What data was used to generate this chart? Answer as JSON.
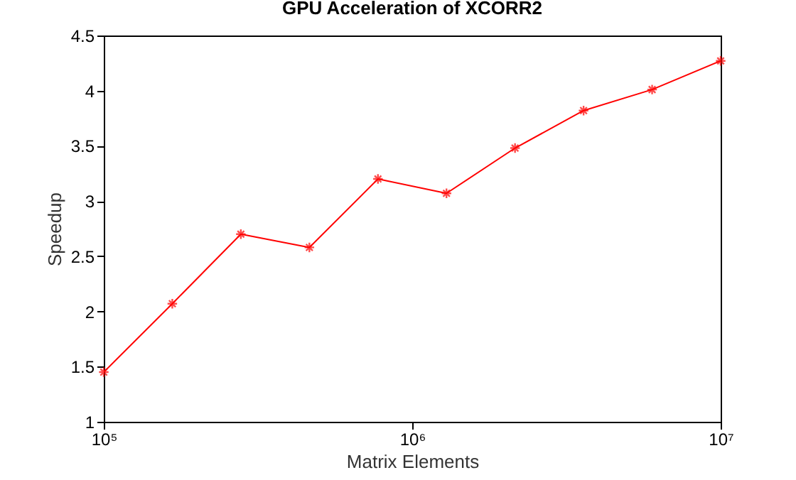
{
  "chart_data": {
    "type": "line",
    "title": "GPU Acceleration of XCORR2",
    "xlabel": "Matrix Elements",
    "ylabel": "Speedup",
    "x": [
      100000,
      166810,
      278256,
      464159,
      774264,
      1291550,
      2154435,
      3593814,
      5994843,
      10000000
    ],
    "series": [
      {
        "color": "#ff0000",
        "values": [
          1.45,
          2.07,
          2.7,
          2.58,
          3.2,
          3.07,
          3.48,
          3.82,
          4.01,
          4.27
        ]
      }
    ],
    "log": "x",
    "xlim": [
      100000,
      10000000
    ],
    "xticks": [
      {
        "value": 100000,
        "label": "10⁵"
      },
      {
        "value": 1000000,
        "label": "10⁶"
      },
      {
        "value": 10000000,
        "label": "10⁷"
      }
    ],
    "ylim": [
      1,
      4.5
    ],
    "yticks": [
      1,
      1.5,
      2,
      2.5,
      3,
      3.5,
      4,
      4.5
    ],
    "grid": false,
    "legend": false,
    "marker": "cross",
    "line_style": "solid"
  }
}
